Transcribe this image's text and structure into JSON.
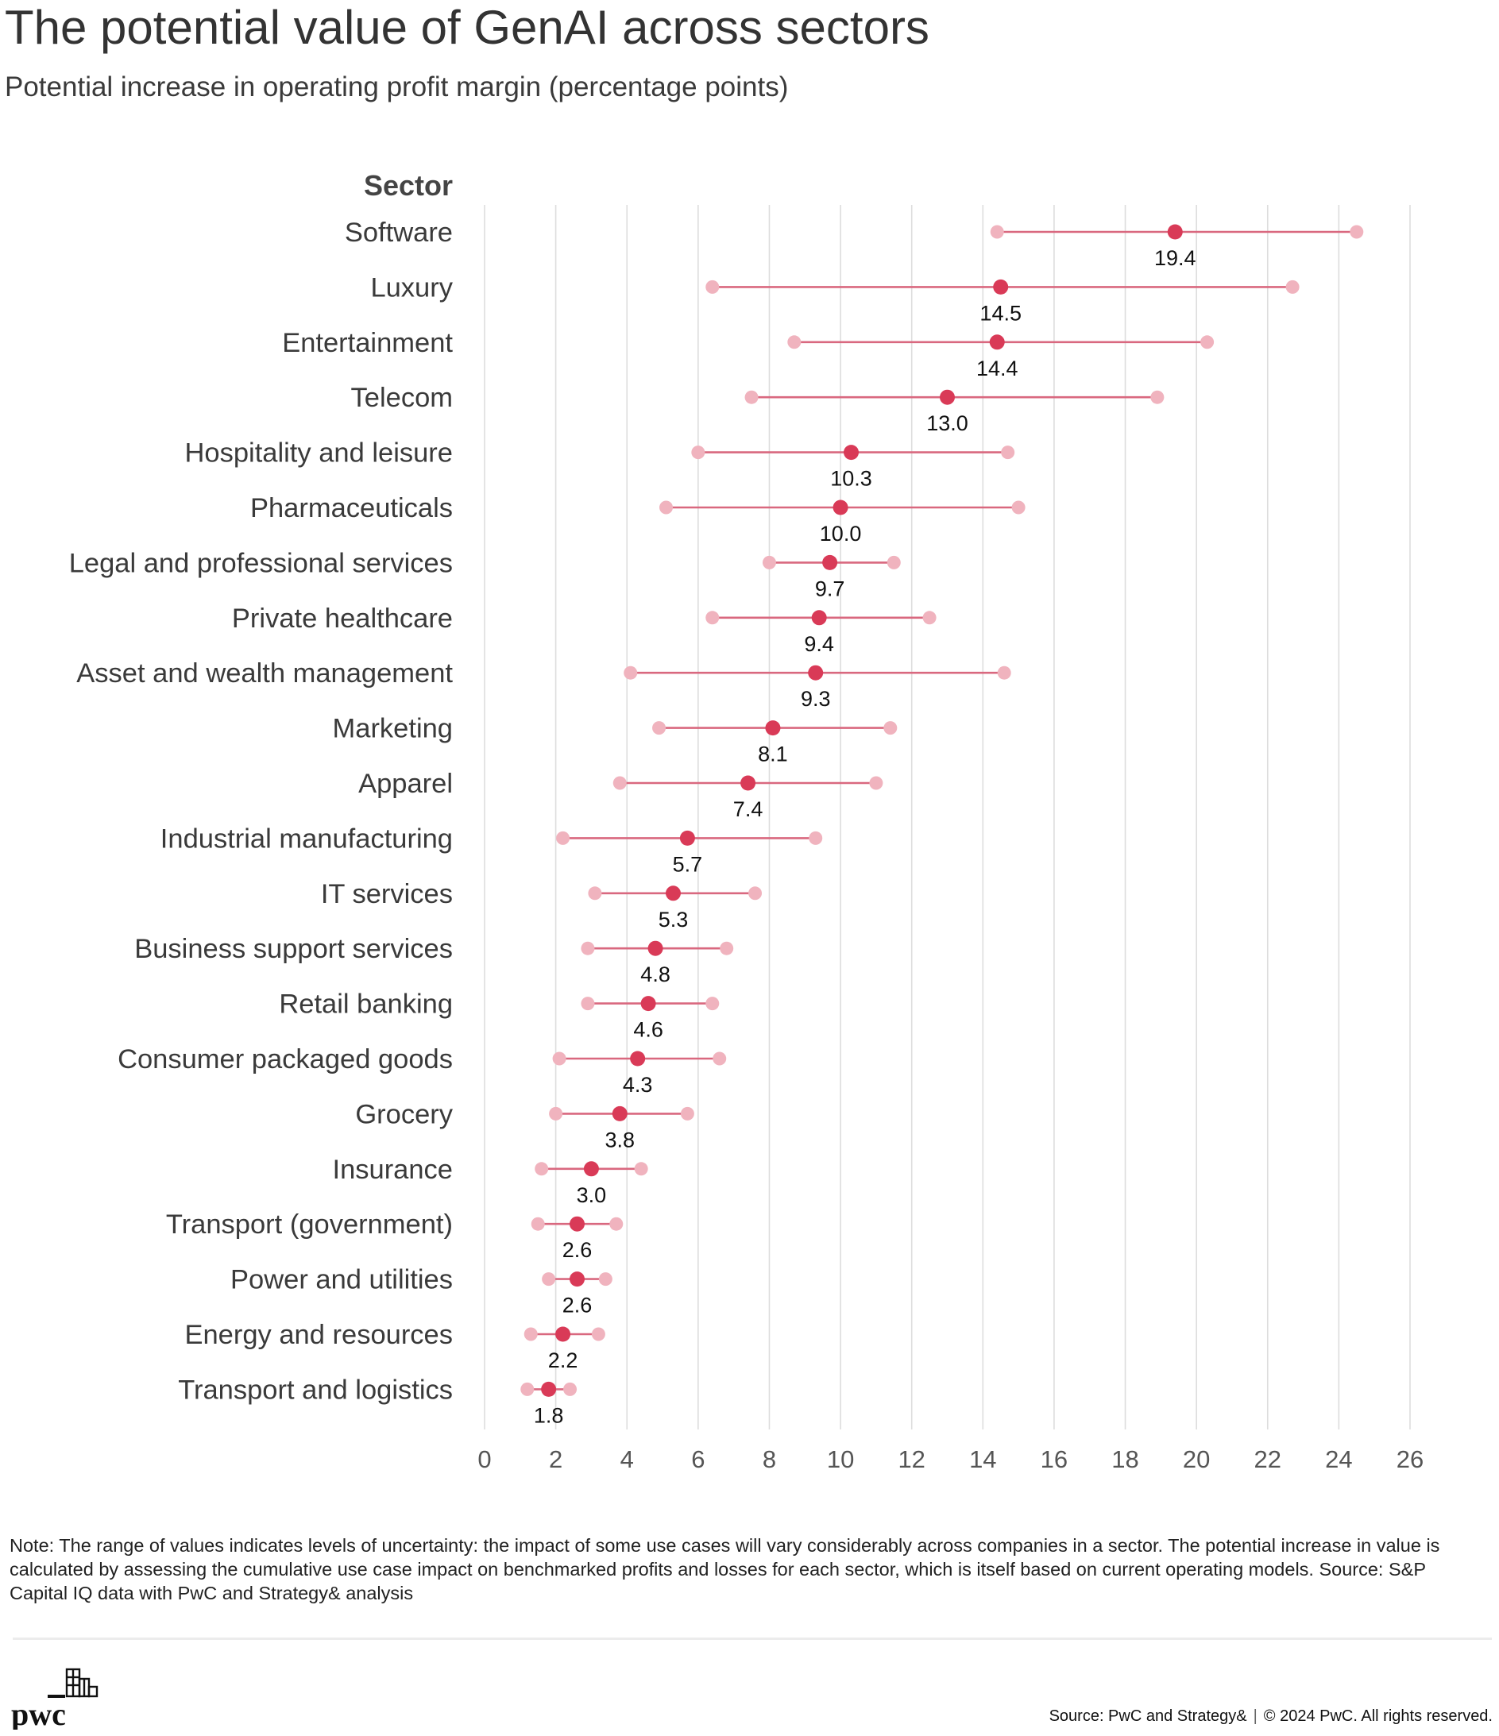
{
  "title": "The potential value of GenAI across sectors",
  "subtitle": "Potential increase in operating profit margin (percentage points)",
  "chart_data": {
    "type": "dot-range",
    "ylabel": "Sector",
    "xlim": [
      0,
      26
    ],
    "xticks": [
      0,
      2,
      4,
      6,
      8,
      10,
      12,
      14,
      16,
      18,
      20,
      22,
      24,
      26
    ],
    "grid": "vertical",
    "colors": {
      "point": "#d93a57",
      "range_end": "#f0b3be",
      "range_line": "#d9687f",
      "grid": "#dddddd"
    },
    "rows": [
      {
        "sector": "Software",
        "value": 19.4,
        "value_label": "19.4",
        "low": 14.4,
        "high": 24.5
      },
      {
        "sector": "Luxury",
        "value": 14.5,
        "value_label": "14.5",
        "low": 6.4,
        "high": 22.7
      },
      {
        "sector": "Entertainment",
        "value": 14.4,
        "value_label": "14.4",
        "low": 8.7,
        "high": 20.3
      },
      {
        "sector": "Telecom",
        "value": 13.0,
        "value_label": "13.0",
        "low": 7.5,
        "high": 18.9
      },
      {
        "sector": "Hospitality and leisure",
        "value": 10.3,
        "value_label": "10.3",
        "low": 6.0,
        "high": 14.7
      },
      {
        "sector": "Pharmaceuticals",
        "value": 10.0,
        "value_label": "10.0",
        "low": 5.1,
        "high": 15.0
      },
      {
        "sector": "Legal and professional services",
        "value": 9.7,
        "value_label": "9.7",
        "low": 8.0,
        "high": 11.5
      },
      {
        "sector": "Private healthcare",
        "value": 9.4,
        "value_label": "9.4",
        "low": 6.4,
        "high": 12.5
      },
      {
        "sector": "Asset and wealth management",
        "value": 9.3,
        "value_label": "9.3",
        "low": 4.1,
        "high": 14.6
      },
      {
        "sector": "Marketing",
        "value": 8.1,
        "value_label": "8.1",
        "low": 4.9,
        "high": 11.4
      },
      {
        "sector": "Apparel",
        "value": 7.4,
        "value_label": "7.4",
        "low": 3.8,
        "high": 11.0
      },
      {
        "sector": "Industrial manufacturing",
        "value": 5.7,
        "value_label": "5.7",
        "low": 2.2,
        "high": 9.3
      },
      {
        "sector": "IT services",
        "value": 5.3,
        "value_label": "5.3",
        "low": 3.1,
        "high": 7.6
      },
      {
        "sector": "Business support services",
        "value": 4.8,
        "value_label": "4.8",
        "low": 2.9,
        "high": 6.8
      },
      {
        "sector": "Retail banking",
        "value": 4.6,
        "value_label": "4.6",
        "low": 2.9,
        "high": 6.4
      },
      {
        "sector": "Consumer packaged goods",
        "value": 4.3,
        "value_label": "4.3",
        "low": 2.1,
        "high": 6.6
      },
      {
        "sector": "Grocery",
        "value": 3.8,
        "value_label": "3.8",
        "low": 2.0,
        "high": 5.7
      },
      {
        "sector": "Insurance",
        "value": 3.0,
        "value_label": "3.0",
        "low": 1.6,
        "high": 4.4
      },
      {
        "sector": "Transport (government)",
        "value": 2.6,
        "value_label": "2.6",
        "low": 1.5,
        "high": 3.7
      },
      {
        "sector": "Power and utilities",
        "value": 2.6,
        "value_label": "2.6",
        "low": 1.8,
        "high": 3.4
      },
      {
        "sector": "Energy and resources",
        "value": 2.2,
        "value_label": "2.2",
        "low": 1.3,
        "high": 3.2
      },
      {
        "sector": "Transport and logistics",
        "value": 1.8,
        "value_label": "1.8",
        "low": 1.2,
        "high": 2.4
      }
    ]
  },
  "note": "Note: The range of values indicates levels of uncertainty: the impact of some use cases will vary considerably across companies in a sector. The potential increase in value is calculated by assessing the cumulative use case impact on benchmarked profits and losses for each sector, which is itself based on current operating models. Source: S&P Capital IQ data with PwC and Strategy& analysis",
  "footer": {
    "brand": "pwc",
    "source": "Source: PwC and Strategy&",
    "separator": "|",
    "copyright": "© 2024 PwC. All rights reserved."
  }
}
